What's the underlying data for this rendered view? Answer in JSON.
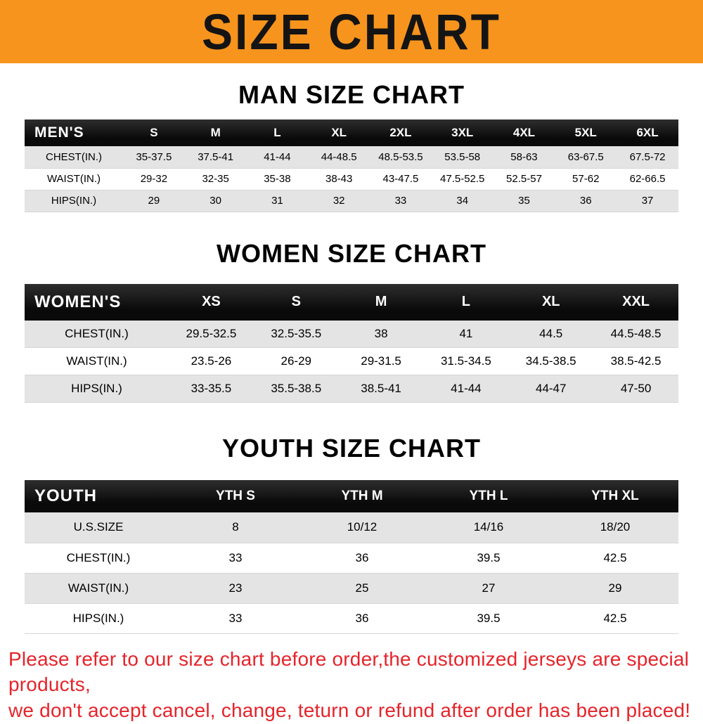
{
  "banner": {
    "title": "SIZE CHART"
  },
  "colors": {
    "banner_bg": "#F7941D",
    "header_bg": "#111111",
    "shaded_row": "#e4e4e4",
    "footer_text": "#e5242b"
  },
  "sections": [
    {
      "id": "men",
      "title": "MAN SIZE CHART",
      "header_label": "MEN'S",
      "columns": [
        "S",
        "M",
        "L",
        "XL",
        "2XL",
        "3XL",
        "4XL",
        "5XL",
        "6XL"
      ],
      "rows": [
        {
          "label": "CHEST(IN.)",
          "values": [
            "35-37.5",
            "37.5-41",
            "41-44",
            "44-48.5",
            "48.5-53.5",
            "53.5-58",
            "58-63",
            "63-67.5",
            "67.5-72"
          ]
        },
        {
          "label": "WAIST(IN.)",
          "values": [
            "29-32",
            "32-35",
            "35-38",
            "38-43",
            "43-47.5",
            "47.5-52.5",
            "52.5-57",
            "57-62",
            "62-66.5"
          ]
        },
        {
          "label": "HIPS(IN.)",
          "values": [
            "29",
            "30",
            "31",
            "32",
            "33",
            "34",
            "35",
            "36",
            "37"
          ]
        }
      ]
    },
    {
      "id": "women",
      "title": "WOMEN SIZE CHART",
      "header_label": "WOMEN'S",
      "columns": [
        "XS",
        "S",
        "M",
        "L",
        "XL",
        "XXL"
      ],
      "rows": [
        {
          "label": "CHEST(IN.)",
          "values": [
            "29.5-32.5",
            "32.5-35.5",
            "38",
            "41",
            "44.5",
            "44.5-48.5"
          ]
        },
        {
          "label": "WAIST(IN.)",
          "values": [
            "23.5-26",
            "26-29",
            "29-31.5",
            "31.5-34.5",
            "34.5-38.5",
            "38.5-42.5"
          ]
        },
        {
          "label": "HIPS(IN.)",
          "values": [
            "33-35.5",
            "35.5-38.5",
            "38.5-41",
            "41-44",
            "44-47",
            "47-50"
          ]
        }
      ]
    },
    {
      "id": "youth",
      "title": "YOUTH SIZE CHART",
      "header_label": "YOUTH",
      "columns": [
        "YTH S",
        "YTH M",
        "YTH L",
        "YTH XL"
      ],
      "rows": [
        {
          "label": "U.S.SIZE",
          "values": [
            "8",
            "10/12",
            "14/16",
            "18/20"
          ]
        },
        {
          "label": "CHEST(IN.)",
          "values": [
            "33",
            "36",
            "39.5",
            "42.5"
          ]
        },
        {
          "label": "WAIST(IN.)",
          "values": [
            "23",
            "25",
            "27",
            "29"
          ]
        },
        {
          "label": "HIPS(IN.)",
          "values": [
            "33",
            "36",
            "39.5",
            "42.5"
          ]
        }
      ]
    }
  ],
  "footer": {
    "line1": "Please refer to our size chart before order,the customized jerseys are special products,",
    "line2": "we don't accept cancel, change, teturn or refund after order has been placed!"
  }
}
